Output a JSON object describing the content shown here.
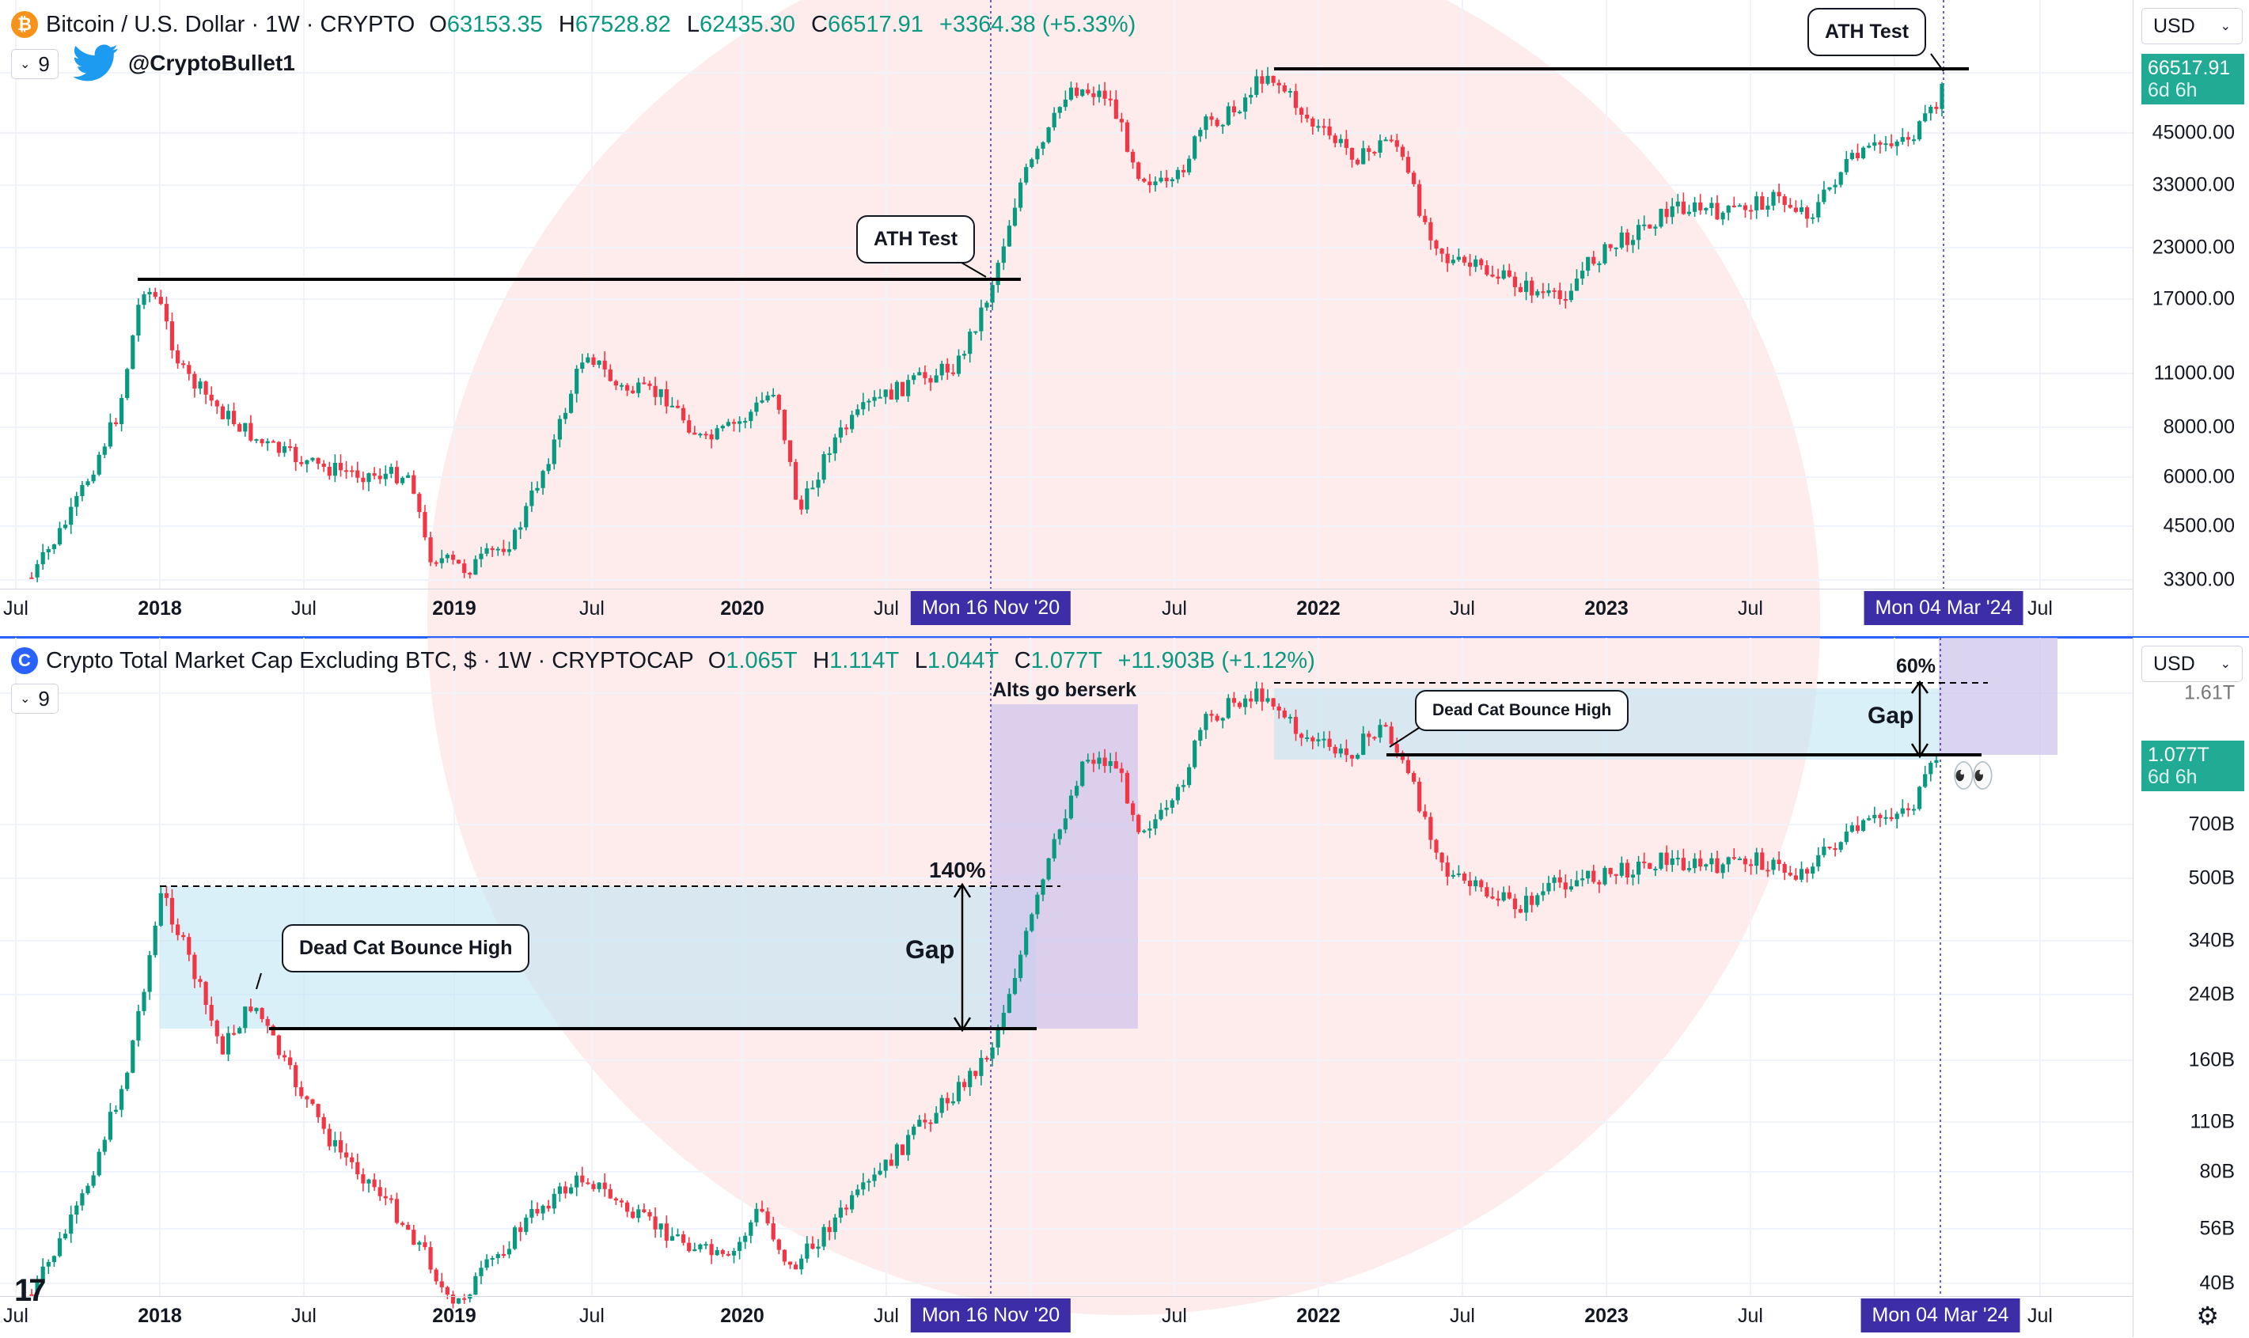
{
  "colors": {
    "up": "#089981",
    "down": "#f23645",
    "accent": "#2962ff",
    "date_tag": "#3d2ea8",
    "price_tag": "#22ab94",
    "gap_fill": "#bfe6f3",
    "alt_zone": "#cfc6ec"
  },
  "top": {
    "symbol_icon": "bitcoin-icon",
    "symbol_icon_char": "₿",
    "title": "Bitcoin / U.S. Dollar · 1W · CRYPTO",
    "open_label": "O",
    "open": "63153.35",
    "high_label": "H",
    "high": "67528.82",
    "low_label": "L",
    "low": "62435.30",
    "close_label": "C",
    "close": "66517.91",
    "change": "+3364.38 (+5.33%)",
    "indicator_count": "9",
    "author": "@CryptoBullet1",
    "unit": "USD",
    "last_price": "66517.91",
    "countdown": "6d 6h",
    "y_labels": [
      "45000.00",
      "33000.00",
      "23000.00",
      "17000.00",
      "11000.00",
      "8000.00",
      "6000.00",
      "4500.00",
      "3300.00"
    ],
    "callouts": [
      "ATH Test",
      "ATH Test"
    ],
    "x_labels": [
      "Jul",
      "2018",
      "Jul",
      "2019",
      "Jul",
      "2020",
      "Jul",
      "Jul",
      "2022",
      "Jul",
      "2023",
      "Jul",
      "Jul"
    ],
    "date_tags": [
      "Mon 16 Nov '20",
      "Mon 04 Mar '24"
    ]
  },
  "bottom": {
    "symbol_icon": "crypto-cap-icon",
    "symbol_icon_char": "C",
    "title": "Crypto Total Market Cap Excluding BTC, $ · 1W · CRYPTOCAP",
    "open_label": "O",
    "open": "1.065T",
    "high_label": "H",
    "high": "1.114T",
    "low_label": "L",
    "low": "1.044T",
    "close_label": "C",
    "close": "1.077T",
    "change": "+11.903B (+1.12%)",
    "indicator_count": "9",
    "unit": "USD",
    "last_price": "1.077T",
    "countdown": "6d 6h",
    "y_labels": [
      "1.61T",
      "700B",
      "500B",
      "340B",
      "240B",
      "160B",
      "110B",
      "80B",
      "56B",
      "40B"
    ],
    "annotations": {
      "alts": "Alts go berserk",
      "pct_left": "140%",
      "gap_left": "Gap",
      "pct_right": "60%",
      "gap_right": "Gap",
      "eyes": "👀"
    },
    "callouts": [
      "Dead Cat Bounce High",
      "Dead Cat Bounce High"
    ],
    "x_labels": [
      "Jul",
      "2018",
      "Jul",
      "2019",
      "Jul",
      "2020",
      "Jul",
      "Jul",
      "2022",
      "Jul",
      "2023",
      "Jul",
      "Jul"
    ],
    "date_tags": [
      "Mon 16 Nov '20",
      "Mon 04 Mar '24"
    ]
  },
  "footer": {
    "logo": "17",
    "settings_icon": "gear-icon"
  }
}
